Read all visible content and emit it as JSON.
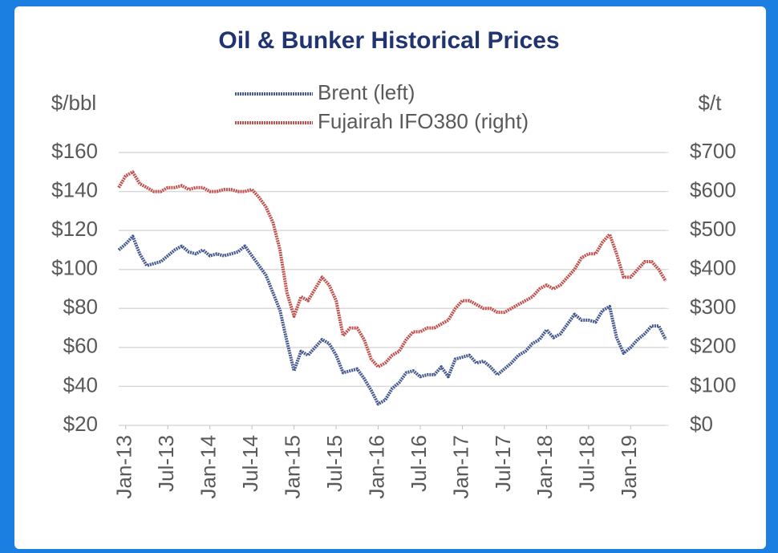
{
  "chart_data": {
    "type": "line",
    "title": "Oil & Bunker Historical Prices",
    "y_label": "$/bbl",
    "y2_label": "$/t",
    "x": [
      "2012-12",
      "2013-01",
      "2013-02",
      "2013-03",
      "2013-04",
      "2013-05",
      "2013-06",
      "2013-07",
      "2013-08",
      "2013-09",
      "2013-10",
      "2013-11",
      "2013-12",
      "2014-01",
      "2014-02",
      "2014-03",
      "2014-04",
      "2014-05",
      "2014-06",
      "2014-07",
      "2014-08",
      "2014-09",
      "2014-10",
      "2014-11",
      "2014-12",
      "2015-01",
      "2015-02",
      "2015-03",
      "2015-04",
      "2015-05",
      "2015-06",
      "2015-07",
      "2015-08",
      "2015-09",
      "2015-10",
      "2015-11",
      "2015-12",
      "2016-01",
      "2016-02",
      "2016-03",
      "2016-04",
      "2016-05",
      "2016-06",
      "2016-07",
      "2016-08",
      "2016-09",
      "2016-10",
      "2016-11",
      "2016-12",
      "2017-01",
      "2017-02",
      "2017-03",
      "2017-04",
      "2017-05",
      "2017-06",
      "2017-07",
      "2017-08",
      "2017-09",
      "2017-10",
      "2017-11",
      "2017-12",
      "2018-01",
      "2018-02",
      "2018-03",
      "2018-04",
      "2018-05",
      "2018-06",
      "2018-07",
      "2018-08",
      "2018-09",
      "2018-10",
      "2018-11",
      "2018-12",
      "2019-01",
      "2019-02",
      "2019-03",
      "2019-04",
      "2019-05",
      "2019-06"
    ],
    "series": [
      {
        "name": "Brent (left)",
        "color": "#45598f",
        "axis": "y",
        "values": [
          110,
          113,
          117,
          108,
          102,
          103,
          104,
          107,
          110,
          112,
          109,
          108,
          110,
          107,
          108,
          107,
          108,
          109,
          112,
          107,
          102,
          97,
          88,
          79,
          63,
          48,
          58,
          56,
          60,
          64,
          62,
          56,
          47,
          48,
          49,
          44,
          38,
          31,
          33,
          39,
          42,
          47,
          48,
          45,
          46,
          46,
          50,
          45,
          54,
          55,
          56,
          52,
          53,
          50,
          46,
          49,
          52,
          56,
          58,
          62,
          64,
          69,
          65,
          67,
          72,
          77,
          74,
          74,
          73,
          79,
          81,
          65,
          57,
          60,
          64,
          67,
          71,
          71,
          64
        ]
      },
      {
        "name": "Fujairah IFO380 (right)",
        "color": "#c0504d",
        "axis": "y2",
        "values": [
          610,
          640,
          650,
          620,
          610,
          600,
          600,
          610,
          610,
          615,
          605,
          610,
          610,
          600,
          600,
          605,
          605,
          600,
          600,
          605,
          585,
          560,
          520,
          450,
          340,
          280,
          330,
          320,
          350,
          380,
          360,
          320,
          230,
          250,
          250,
          220,
          170,
          150,
          160,
          180,
          190,
          220,
          240,
          240,
          250,
          250,
          260,
          270,
          300,
          320,
          320,
          310,
          300,
          300,
          290,
          290,
          300,
          310,
          320,
          330,
          350,
          360,
          350,
          360,
          380,
          400,
          430,
          440,
          440,
          470,
          490,
          440,
          380,
          380,
          400,
          420,
          420,
          400,
          370
        ]
      }
    ],
    "xlim": [
      "2012-12",
      "2019-06"
    ],
    "xticks": [
      {
        "value": "2013-01",
        "label": "Jan-13"
      },
      {
        "value": "2013-07",
        "label": "Jul-13"
      },
      {
        "value": "2014-01",
        "label": "Jan-14"
      },
      {
        "value": "2014-07",
        "label": "Jul-14"
      },
      {
        "value": "2015-01",
        "label": "Jan-15"
      },
      {
        "value": "2015-07",
        "label": "Jul-15"
      },
      {
        "value": "2016-01",
        "label": "Jan-16"
      },
      {
        "value": "2016-07",
        "label": "Jul-16"
      },
      {
        "value": "2017-01",
        "label": "Jan-17"
      },
      {
        "value": "2017-07",
        "label": "Jul-17"
      },
      {
        "value": "2018-01",
        "label": "Jan-18"
      },
      {
        "value": "2018-07",
        "label": "Jul-18"
      },
      {
        "value": "2019-01",
        "label": "Jan-19"
      }
    ],
    "ylim": [
      20,
      160
    ],
    "yticks": [
      {
        "value": 20,
        "label": "$20"
      },
      {
        "value": 40,
        "label": "$40"
      },
      {
        "value": 60,
        "label": "$60"
      },
      {
        "value": 80,
        "label": "$80"
      },
      {
        "value": 100,
        "label": "$100"
      },
      {
        "value": 120,
        "label": "$120"
      },
      {
        "value": 140,
        "label": "$140"
      },
      {
        "value": 160,
        "label": "$160"
      }
    ],
    "y2lim": [
      0,
      700
    ],
    "y2ticks": [
      {
        "value": 0,
        "label": "$0"
      },
      {
        "value": 100,
        "label": "$100"
      },
      {
        "value": 200,
        "label": "$200"
      },
      {
        "value": 300,
        "label": "$300"
      },
      {
        "value": 400,
        "label": "$400"
      },
      {
        "value": 500,
        "label": "$500"
      },
      {
        "value": 600,
        "label": "$600"
      },
      {
        "value": 700,
        "label": "$700"
      }
    ],
    "grid": true,
    "legend": "top"
  }
}
